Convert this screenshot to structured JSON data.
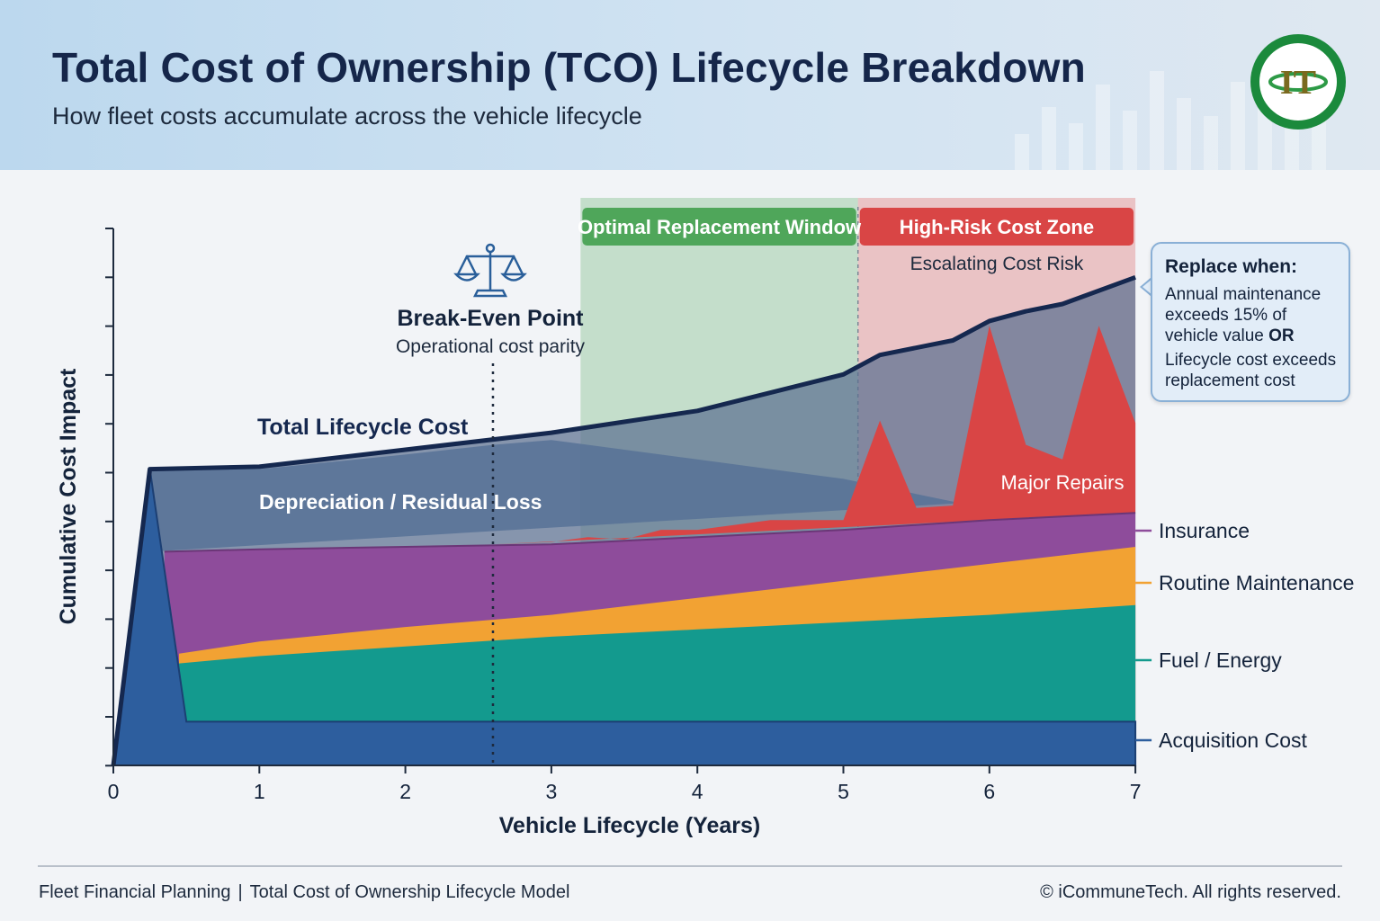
{
  "header": {
    "title": "Total Cost of Ownership (TCO) Lifecycle Breakdown",
    "subtitle": "How fleet costs accumulate across the vehicle lifecycle",
    "logo_text": "IT"
  },
  "chart_data": {
    "type": "area",
    "xlabel": "Vehicle Lifecycle (Years)",
    "ylabel": "Cumulative Cost Impact",
    "xlim": [
      0,
      7
    ],
    "x_ticks": [
      "0",
      "1",
      "2",
      "3",
      "4",
      "5",
      "6",
      "7"
    ],
    "y_tick_labels": false,
    "legend_position": "right",
    "series": [
      {
        "name": "Acquisition Cost",
        "color": "#2d5e9e",
        "points": [
          [
            0,
            0
          ],
          [
            0.25,
            6.1
          ],
          [
            0.5,
            0.9
          ],
          [
            7,
            0.9
          ]
        ]
      },
      {
        "name": "Fuel / Energy",
        "color": "#139a8e",
        "points": [
          [
            0.45,
            2.1
          ],
          [
            1,
            2.25
          ],
          [
            2,
            2.45
          ],
          [
            3,
            2.65
          ],
          [
            4,
            2.8
          ],
          [
            5,
            2.95
          ],
          [
            6,
            3.1
          ],
          [
            7,
            3.3
          ]
        ]
      },
      {
        "name": "Routine Maintenance",
        "color": "#f2a233",
        "points": [
          [
            0.45,
            2.3
          ],
          [
            1,
            2.55
          ],
          [
            2,
            2.85
          ],
          [
            3,
            3.1
          ],
          [
            4,
            3.45
          ],
          [
            5,
            3.8
          ],
          [
            6,
            4.15
          ],
          [
            7,
            4.5
          ]
        ]
      },
      {
        "name": "Insurance",
        "color": "#8e4c9b",
        "points": [
          [
            0.35,
            4.4
          ],
          [
            1,
            4.45
          ],
          [
            2,
            4.5
          ],
          [
            3,
            4.55
          ],
          [
            4,
            4.7
          ],
          [
            5,
            4.85
          ],
          [
            6,
            5.05
          ],
          [
            7,
            5.2
          ]
        ]
      },
      {
        "name": "Major Repairs",
        "color": "#d94545",
        "points": [
          [
            2.6,
            4.55
          ],
          [
            3,
            4.6
          ],
          [
            3.25,
            4.7
          ],
          [
            3.5,
            4.65
          ],
          [
            3.75,
            4.85
          ],
          [
            4,
            4.85
          ],
          [
            4.25,
            4.95
          ],
          [
            4.5,
            5.05
          ],
          [
            4.75,
            5.05
          ],
          [
            5,
            5.05
          ],
          [
            5.25,
            7.1
          ],
          [
            5.5,
            5.3
          ],
          [
            5.75,
            5.35
          ],
          [
            6,
            9.05
          ],
          [
            6.25,
            6.6
          ],
          [
            6.5,
            6.3
          ],
          [
            6.75,
            9.05
          ],
          [
            7,
            7.05
          ]
        ]
      },
      {
        "name": "Depreciation / Residual Loss",
        "color": "#577296",
        "points": [
          [
            0.25,
            6.1
          ],
          [
            1,
            6.1
          ],
          [
            2,
            6.4
          ],
          [
            2.6,
            6.6
          ],
          [
            3,
            6.7
          ],
          [
            4,
            6.3
          ],
          [
            5,
            5.9
          ],
          [
            5.8,
            5.4
          ]
        ]
      },
      {
        "name": "Total Lifecycle Cost",
        "color": "#15284f",
        "points": [
          [
            0,
            0
          ],
          [
            0.25,
            6.1
          ],
          [
            1,
            6.15
          ],
          [
            2,
            6.5
          ],
          [
            3,
            6.85
          ],
          [
            4,
            7.3
          ],
          [
            5,
            8.05
          ],
          [
            5.25,
            8.45
          ],
          [
            5.75,
            8.75
          ],
          [
            6,
            9.15
          ],
          [
            6.25,
            9.35
          ],
          [
            6.5,
            9.5
          ],
          [
            7,
            10.05
          ]
        ]
      }
    ],
    "zones": [
      {
        "label": "Optimal Replacement Window",
        "x_start": 3.2,
        "x_end": 5.1,
        "color": "#4fa65a"
      },
      {
        "label": "High-Risk Cost Zone",
        "sublabel": "Escalating Cost Risk",
        "x_start": 5.1,
        "x_end": 7,
        "color": "#d94545"
      }
    ],
    "annotations": {
      "break_even": {
        "title": "Break-Even Point",
        "subtitle": "Operational cost parity",
        "x": 2.6
      },
      "total_label": "Total Lifecycle Cost",
      "depreciation_label": "Depreciation / Residual Loss",
      "major_repairs_label": "Major Repairs"
    },
    "legend": [
      "Insurance",
      "Routine Maintenance",
      "Fuel / Energy",
      "Acquisition Cost"
    ]
  },
  "callout": {
    "title": "Replace when:",
    "line1_before": "Annual maintenance exceeds 15% of vehicle value",
    "line1_connector": "OR",
    "line2": "Lifecycle cost exceeds replacement cost"
  },
  "footer": {
    "left_part1": "Fleet Financial Planning",
    "separator": "|",
    "left_part2": "Total Cost of Ownership Lifecycle Model",
    "right": "© iCommuneTech. All rights reserved."
  }
}
